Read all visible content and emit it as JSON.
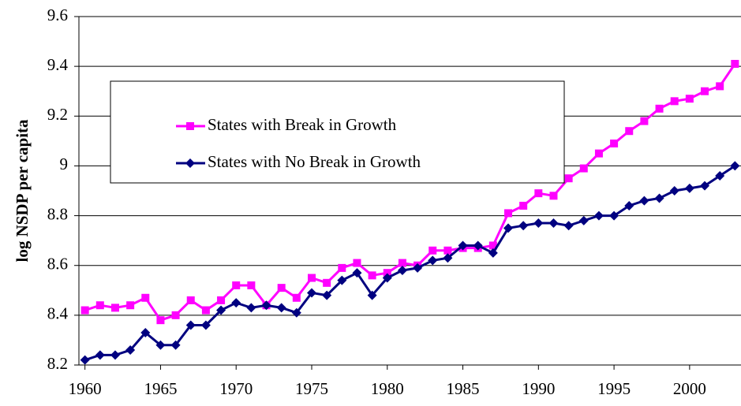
{
  "chart_data": {
    "type": "line",
    "ylabel": "log NSDP per capita",
    "x": [
      1960,
      1961,
      1962,
      1963,
      1964,
      1965,
      1966,
      1967,
      1968,
      1969,
      1970,
      1971,
      1972,
      1973,
      1974,
      1975,
      1976,
      1977,
      1978,
      1979,
      1980,
      1981,
      1982,
      1983,
      1984,
      1985,
      1986,
      1987,
      1988,
      1989,
      1990,
      1991,
      1992,
      1993,
      1994,
      1995,
      1996,
      1997,
      1998,
      1999,
      2000,
      2001,
      2002,
      2003
    ],
    "series": [
      {
        "name": "States with Break in Growth",
        "color": "#ff00ff",
        "marker": "square",
        "values": [
          8.42,
          8.44,
          8.43,
          8.44,
          8.47,
          8.38,
          8.4,
          8.46,
          8.42,
          8.46,
          8.52,
          8.52,
          8.44,
          8.51,
          8.47,
          8.55,
          8.53,
          8.59,
          8.61,
          8.56,
          8.57,
          8.61,
          8.6,
          8.66,
          8.66,
          8.67,
          8.67,
          8.68,
          8.81,
          8.84,
          8.89,
          8.88,
          8.95,
          8.99,
          9.05,
          9.09,
          9.14,
          9.18,
          9.23,
          9.26,
          9.27,
          9.3,
          9.32,
          9.41
        ]
      },
      {
        "name": "States with No Break in Growth",
        "color": "#000080",
        "marker": "diamond",
        "values": [
          8.22,
          8.24,
          8.24,
          8.26,
          8.33,
          8.28,
          8.28,
          8.36,
          8.36,
          8.42,
          8.45,
          8.43,
          8.44,
          8.43,
          8.41,
          8.49,
          8.48,
          8.54,
          8.57,
          8.48,
          8.55,
          8.58,
          8.59,
          8.62,
          8.63,
          8.68,
          8.68,
          8.65,
          8.75,
          8.76,
          8.77,
          8.77,
          8.76,
          8.78,
          8.8,
          8.8,
          8.84,
          8.86,
          8.87,
          8.9,
          8.91,
          8.92,
          8.96,
          9.0
        ]
      }
    ],
    "xlim": [
      1959.6,
      2003.4
    ],
    "xticks": [
      1960,
      1965,
      1970,
      1975,
      1980,
      1985,
      1990,
      1995,
      2000
    ],
    "ylim": [
      8.2,
      9.6
    ],
    "yticks": [
      8.2,
      8.4,
      8.6,
      8.8,
      9,
      9.2,
      9.4,
      9.6
    ],
    "grid": true,
    "legend": "upper left"
  }
}
